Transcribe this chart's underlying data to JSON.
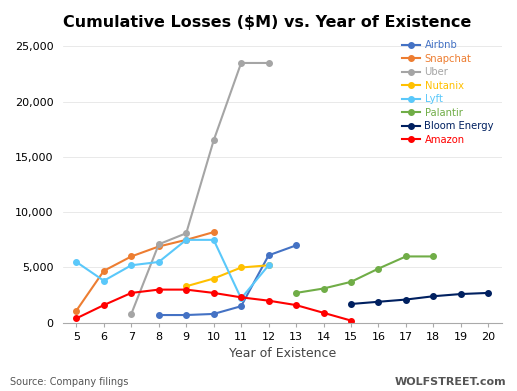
{
  "title": "Cumulative Losses ($M) vs. Year of Existence",
  "xlabel": "Year of Existence",
  "source_text": "Source: Company filings",
  "watermark": "WOLFSTREET.com",
  "xlim": [
    4.5,
    20.5
  ],
  "ylim": [
    0,
    26000
  ],
  "yticks": [
    0,
    5000,
    10000,
    15000,
    20000,
    25000
  ],
  "xticks": [
    5,
    6,
    7,
    8,
    9,
    10,
    11,
    12,
    13,
    14,
    15,
    16,
    17,
    18,
    19,
    20
  ],
  "series": [
    {
      "name": "Airbnb",
      "color": "#4472C4",
      "x": [
        8,
        9,
        10,
        11,
        12,
        13
      ],
      "y": [
        700,
        700,
        800,
        1500,
        6100,
        7000
      ]
    },
    {
      "name": "Snapchat",
      "color": "#ED7D31",
      "x": [
        5,
        6,
        7,
        8,
        9,
        10
      ],
      "y": [
        1100,
        4700,
        6000,
        6900,
        7500,
        8200
      ]
    },
    {
      "name": "Uber",
      "color": "#A5A5A5",
      "x": [
        7,
        8,
        9,
        10,
        11,
        12
      ],
      "y": [
        800,
        7100,
        8100,
        16500,
        23500,
        23500
      ]
    },
    {
      "name": "Nutanix",
      "color": "#FFC000",
      "x": [
        9,
        10,
        11,
        12
      ],
      "y": [
        3300,
        4000,
        5000,
        5200
      ]
    },
    {
      "name": "Lyft",
      "color": "#5AC8FA",
      "x": [
        5,
        6,
        7,
        8,
        9,
        10,
        11,
        12
      ],
      "y": [
        5500,
        3800,
        5200,
        5500,
        7500,
        7500,
        2200,
        5200
      ]
    },
    {
      "name": "Palantir",
      "color": "#70AD47",
      "x": [
        13,
        14,
        15,
        16,
        17,
        18
      ],
      "y": [
        2700,
        3100,
        3700,
        4900,
        6000,
        6000
      ]
    },
    {
      "name": "Bloom Energy",
      "color": "#002060",
      "x": [
        15,
        16,
        17,
        18,
        19,
        20
      ],
      "y": [
        1700,
        1900,
        2100,
        2400,
        2600,
        2700
      ]
    },
    {
      "name": "Amazon",
      "color": "#FF0000",
      "x": [
        5,
        6,
        7,
        8,
        9,
        10,
        11,
        12,
        13,
        14,
        15
      ],
      "y": [
        400,
        1600,
        2700,
        3000,
        3000,
        2700,
        2300,
        2000,
        1600,
        900,
        200
      ]
    }
  ]
}
